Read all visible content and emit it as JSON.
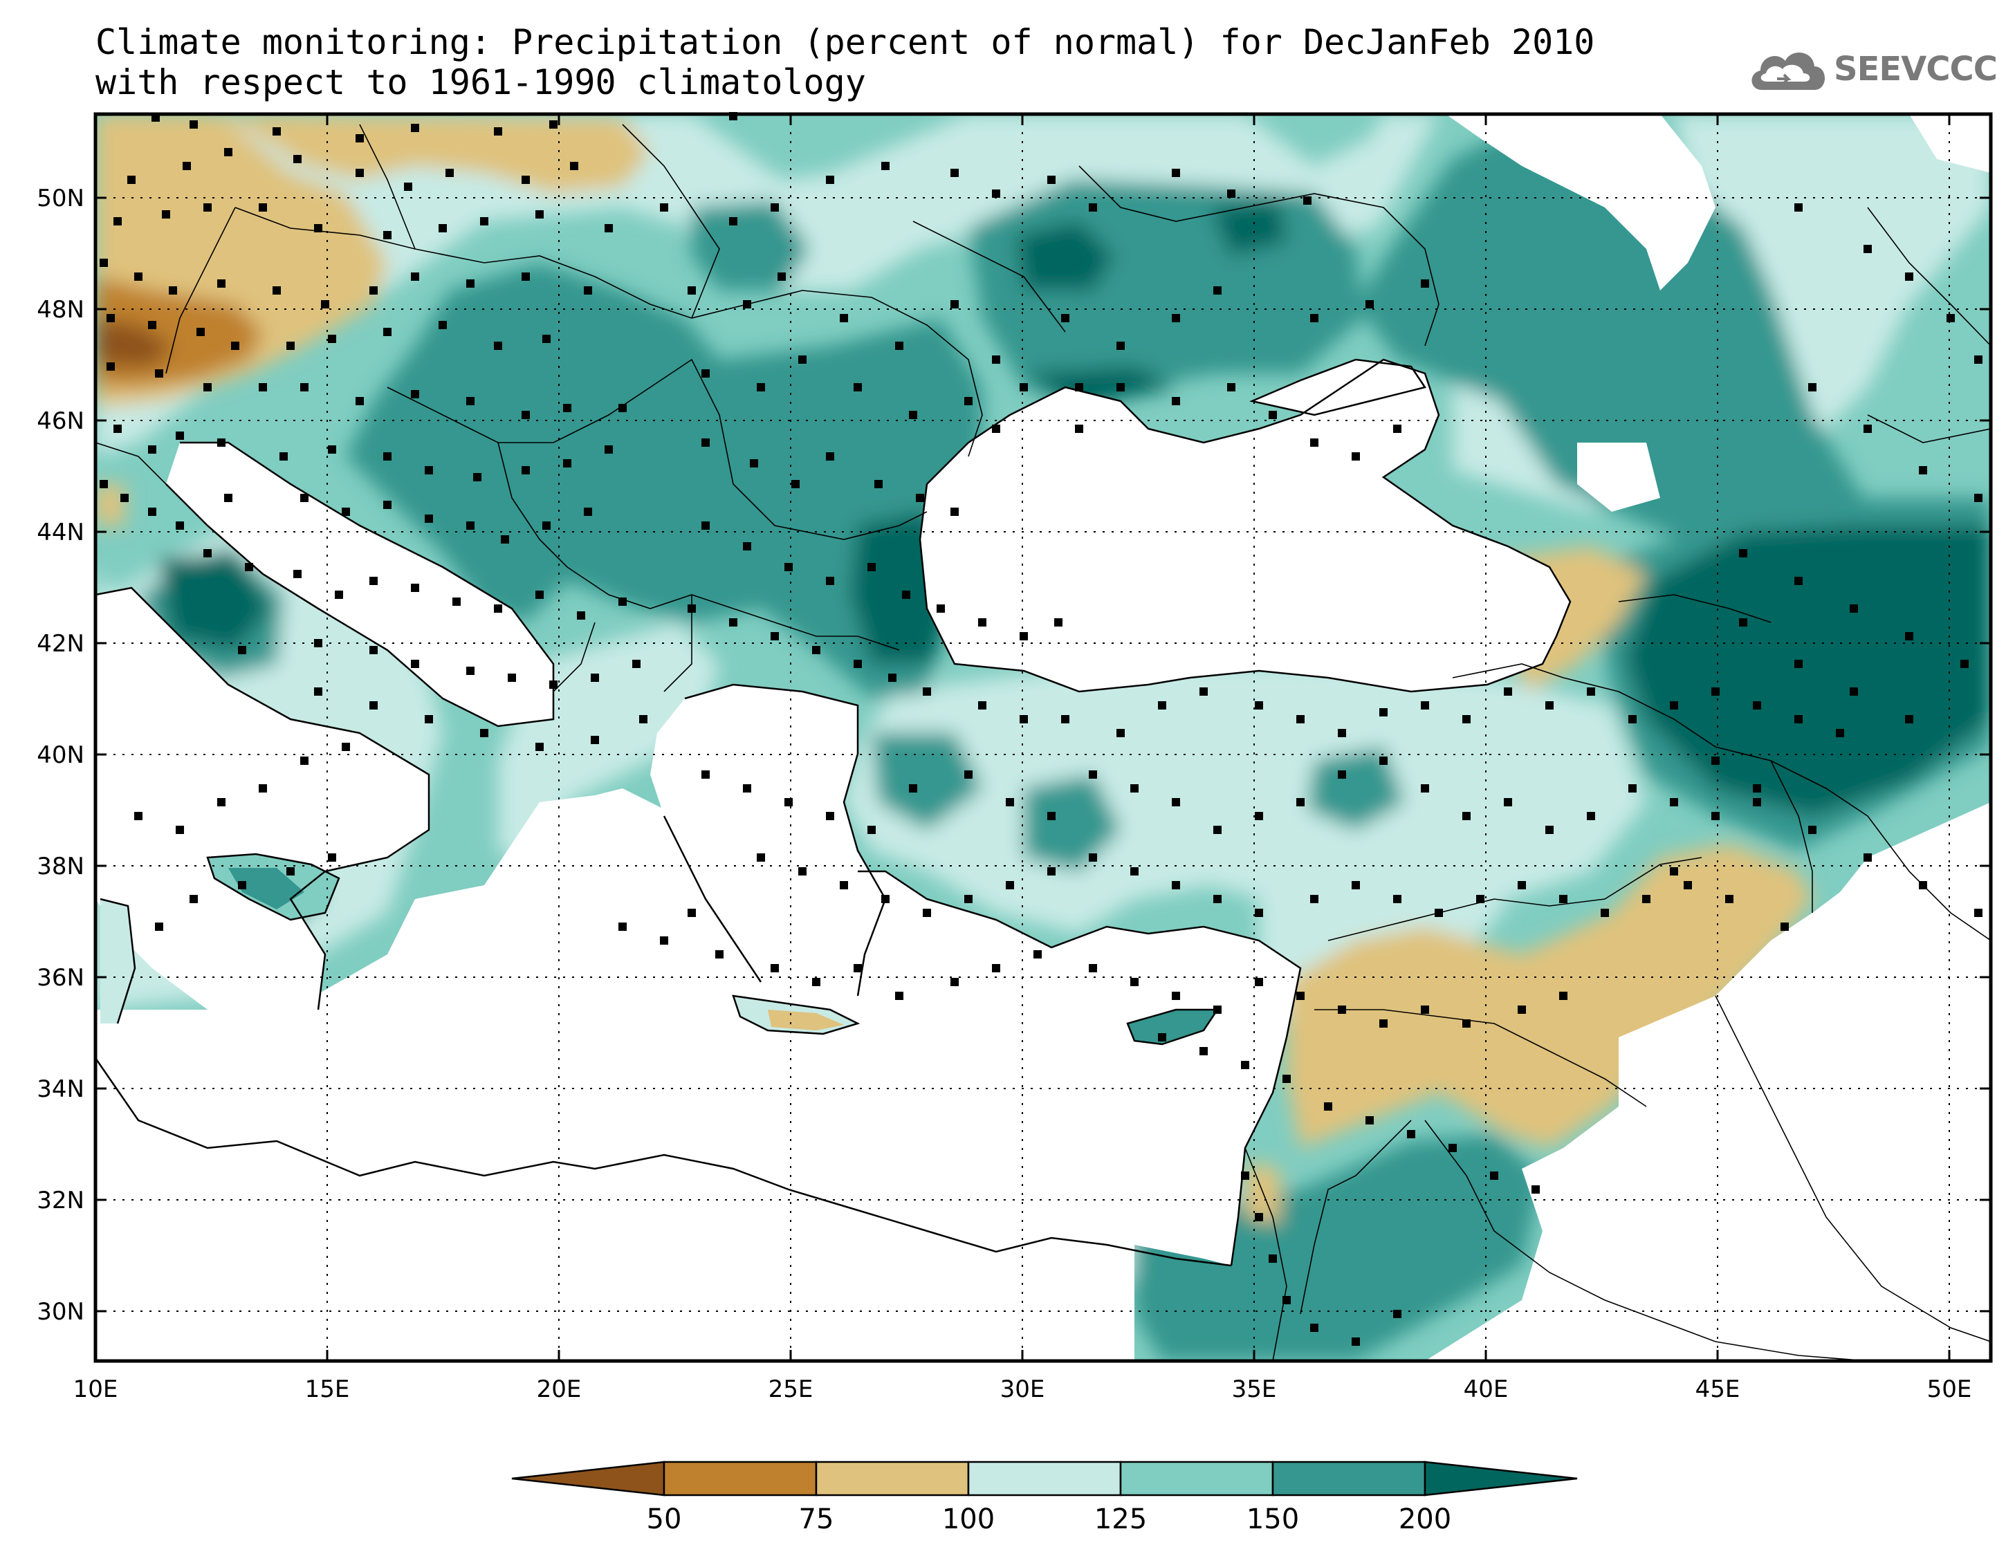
{
  "title": {
    "line1": "Climate monitoring: Precipitation (percent of normal) for DecJanFeb 2010",
    "line2": "with respect to 1961-1990 climatology"
  },
  "logo": {
    "text": "SEEVCCC",
    "icon": "cloud-icon"
  },
  "colors": {
    "c_lt50": "#8d531a",
    "c50_75": "#bf812d",
    "c75_100": "#dfc27d",
    "c100_125": "#c7eae5",
    "c125_150": "#80cdc1",
    "c150_200": "#35978f",
    "c_gt200": "#01665e",
    "coast": "#000000"
  },
  "axes": {
    "x_ticks": [
      "10E",
      "15E",
      "20E",
      "25E",
      "30E",
      "35E",
      "40E",
      "45E",
      "50E"
    ],
    "y_ticks": [
      "30N",
      "32N",
      "34N",
      "36N",
      "38N",
      "40N",
      "42N",
      "44N",
      "46N",
      "48N",
      "50N"
    ]
  },
  "colorbar": {
    "labels": [
      "50",
      "75",
      "100",
      "125",
      "150",
      "200"
    ]
  }
}
